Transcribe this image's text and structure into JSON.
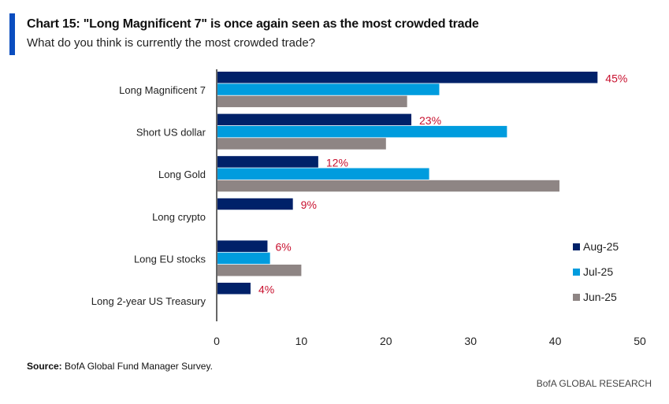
{
  "header": {
    "title": "Chart 15: \"Long Magnificent 7\" is once again seen as the most crowded trade",
    "subtitle": "What do you think is currently the most crowded trade?"
  },
  "footer": {
    "source_label": "Source:",
    "source_text": " BofA Global Fund Manager Survey.",
    "brand": "BofA GLOBAL RESEARCH"
  },
  "colors": {
    "Aug-25": "#002169",
    "Jul-25": "#009cde",
    "Jun-25": "#8e8584",
    "data_label": "#c8102e",
    "accent": "#0a4dbf"
  },
  "chart_data": {
    "type": "bar",
    "orientation": "horizontal",
    "title": "Chart 15: \"Long Magnificent 7\" is once again seen as the most crowded trade",
    "subtitle": "What do you think is currently the most crowded trade?",
    "xlabel": "",
    "ylabel": "",
    "xlim": [
      0,
      50
    ],
    "xticks": [
      0,
      10,
      20,
      30,
      40,
      50
    ],
    "grid": false,
    "legend_position": "bottom-right",
    "categories": [
      "Long Magnificent 7",
      "Short US dollar",
      "Long Gold",
      "Long crypto",
      "Long EU stocks",
      "Long 2-year US Treasury"
    ],
    "series": [
      {
        "name": "Aug-25",
        "values": [
          45,
          23,
          12,
          9,
          6,
          4
        ]
      },
      {
        "name": "Jul-25",
        "values": [
          26.3,
          34.3,
          25.1,
          null,
          6.3,
          null
        ]
      },
      {
        "name": "Jun-25",
        "values": [
          22.5,
          20,
          40.5,
          null,
          10,
          null
        ]
      }
    ],
    "data_labels": [
      "45%",
      "23%",
      "12%",
      "9%",
      "6%",
      "4%"
    ]
  }
}
